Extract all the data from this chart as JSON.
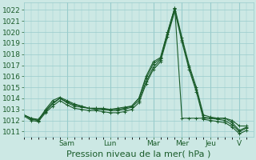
{
  "title": "",
  "xlabel": "Pression niveau de la mer( hPa )",
  "ylabel": "",
  "bg_color": "#cce8e4",
  "grid_color": "#99cccc",
  "line_color": "#1a5c2a",
  "ylim": [
    1010.5,
    1022.7
  ],
  "yticks": [
    1011,
    1012,
    1013,
    1014,
    1015,
    1016,
    1017,
    1018,
    1019,
    1020,
    1021,
    1022
  ],
  "day_labels": [
    "Sam",
    "Lun",
    "Mar",
    "Mer",
    "Jeu",
    "V"
  ],
  "day_positions": [
    6,
    12,
    18,
    22,
    26,
    30
  ],
  "xlim": [
    0,
    32
  ],
  "n_points": 32,
  "series1": [
    1012.5,
    1012.2,
    1012.0,
    1013.0,
    1013.8,
    1014.1,
    1013.8,
    1013.5,
    1013.3,
    1013.1,
    1013.0,
    1013.0,
    1013.0,
    1013.1,
    1013.2,
    1013.3,
    1014.0,
    1016.0,
    1017.3,
    1017.7,
    1020.0,
    1022.2,
    1019.5,
    1017.0,
    1015.0,
    1012.5,
    1012.3,
    1012.2,
    1012.2,
    1011.8,
    1011.1,
    1011.4
  ],
  "series2": [
    1012.5,
    1012.1,
    1012.0,
    1012.8,
    1013.5,
    1014.0,
    1013.6,
    1013.3,
    1013.2,
    1013.1,
    1013.1,
    1013.0,
    1012.9,
    1012.9,
    1013.0,
    1013.2,
    1013.8,
    1015.5,
    1016.8,
    1017.5,
    1019.8,
    1022.1,
    1019.3,
    1016.8,
    1014.8,
    1012.3,
    1012.2,
    1012.1,
    1012.0,
    1011.6,
    1011.0,
    1011.3
  ],
  "series3": [
    1012.4,
    1012.0,
    1011.9,
    1012.7,
    1013.3,
    1013.8,
    1013.4,
    1013.1,
    1013.0,
    1012.9,
    1012.9,
    1012.8,
    1012.7,
    1012.7,
    1012.8,
    1013.0,
    1013.6,
    1015.3,
    1016.6,
    1017.3,
    1019.6,
    1021.9,
    1019.1,
    1016.6,
    1014.6,
    1012.1,
    1012.0,
    1011.9,
    1011.8,
    1011.4,
    1010.8,
    1011.1
  ],
  "series4": [
    1012.5,
    1012.2,
    1012.1,
    1012.9,
    1013.6,
    1014.0,
    1013.7,
    1013.4,
    1013.3,
    1013.1,
    1013.1,
    1013.1,
    1013.0,
    1013.0,
    1013.1,
    1013.3,
    1014.0,
    1015.8,
    1017.1,
    1017.6,
    1020.0,
    1022.2,
    1012.2,
    1012.2,
    1012.2,
    1012.2,
    1012.2,
    1012.2,
    1012.2,
    1012.0,
    1011.5,
    1011.5
  ],
  "marker": "+",
  "markersize": 3,
  "linewidth": 0.8,
  "xlabel_fontsize": 8,
  "tick_fontsize": 6.5
}
